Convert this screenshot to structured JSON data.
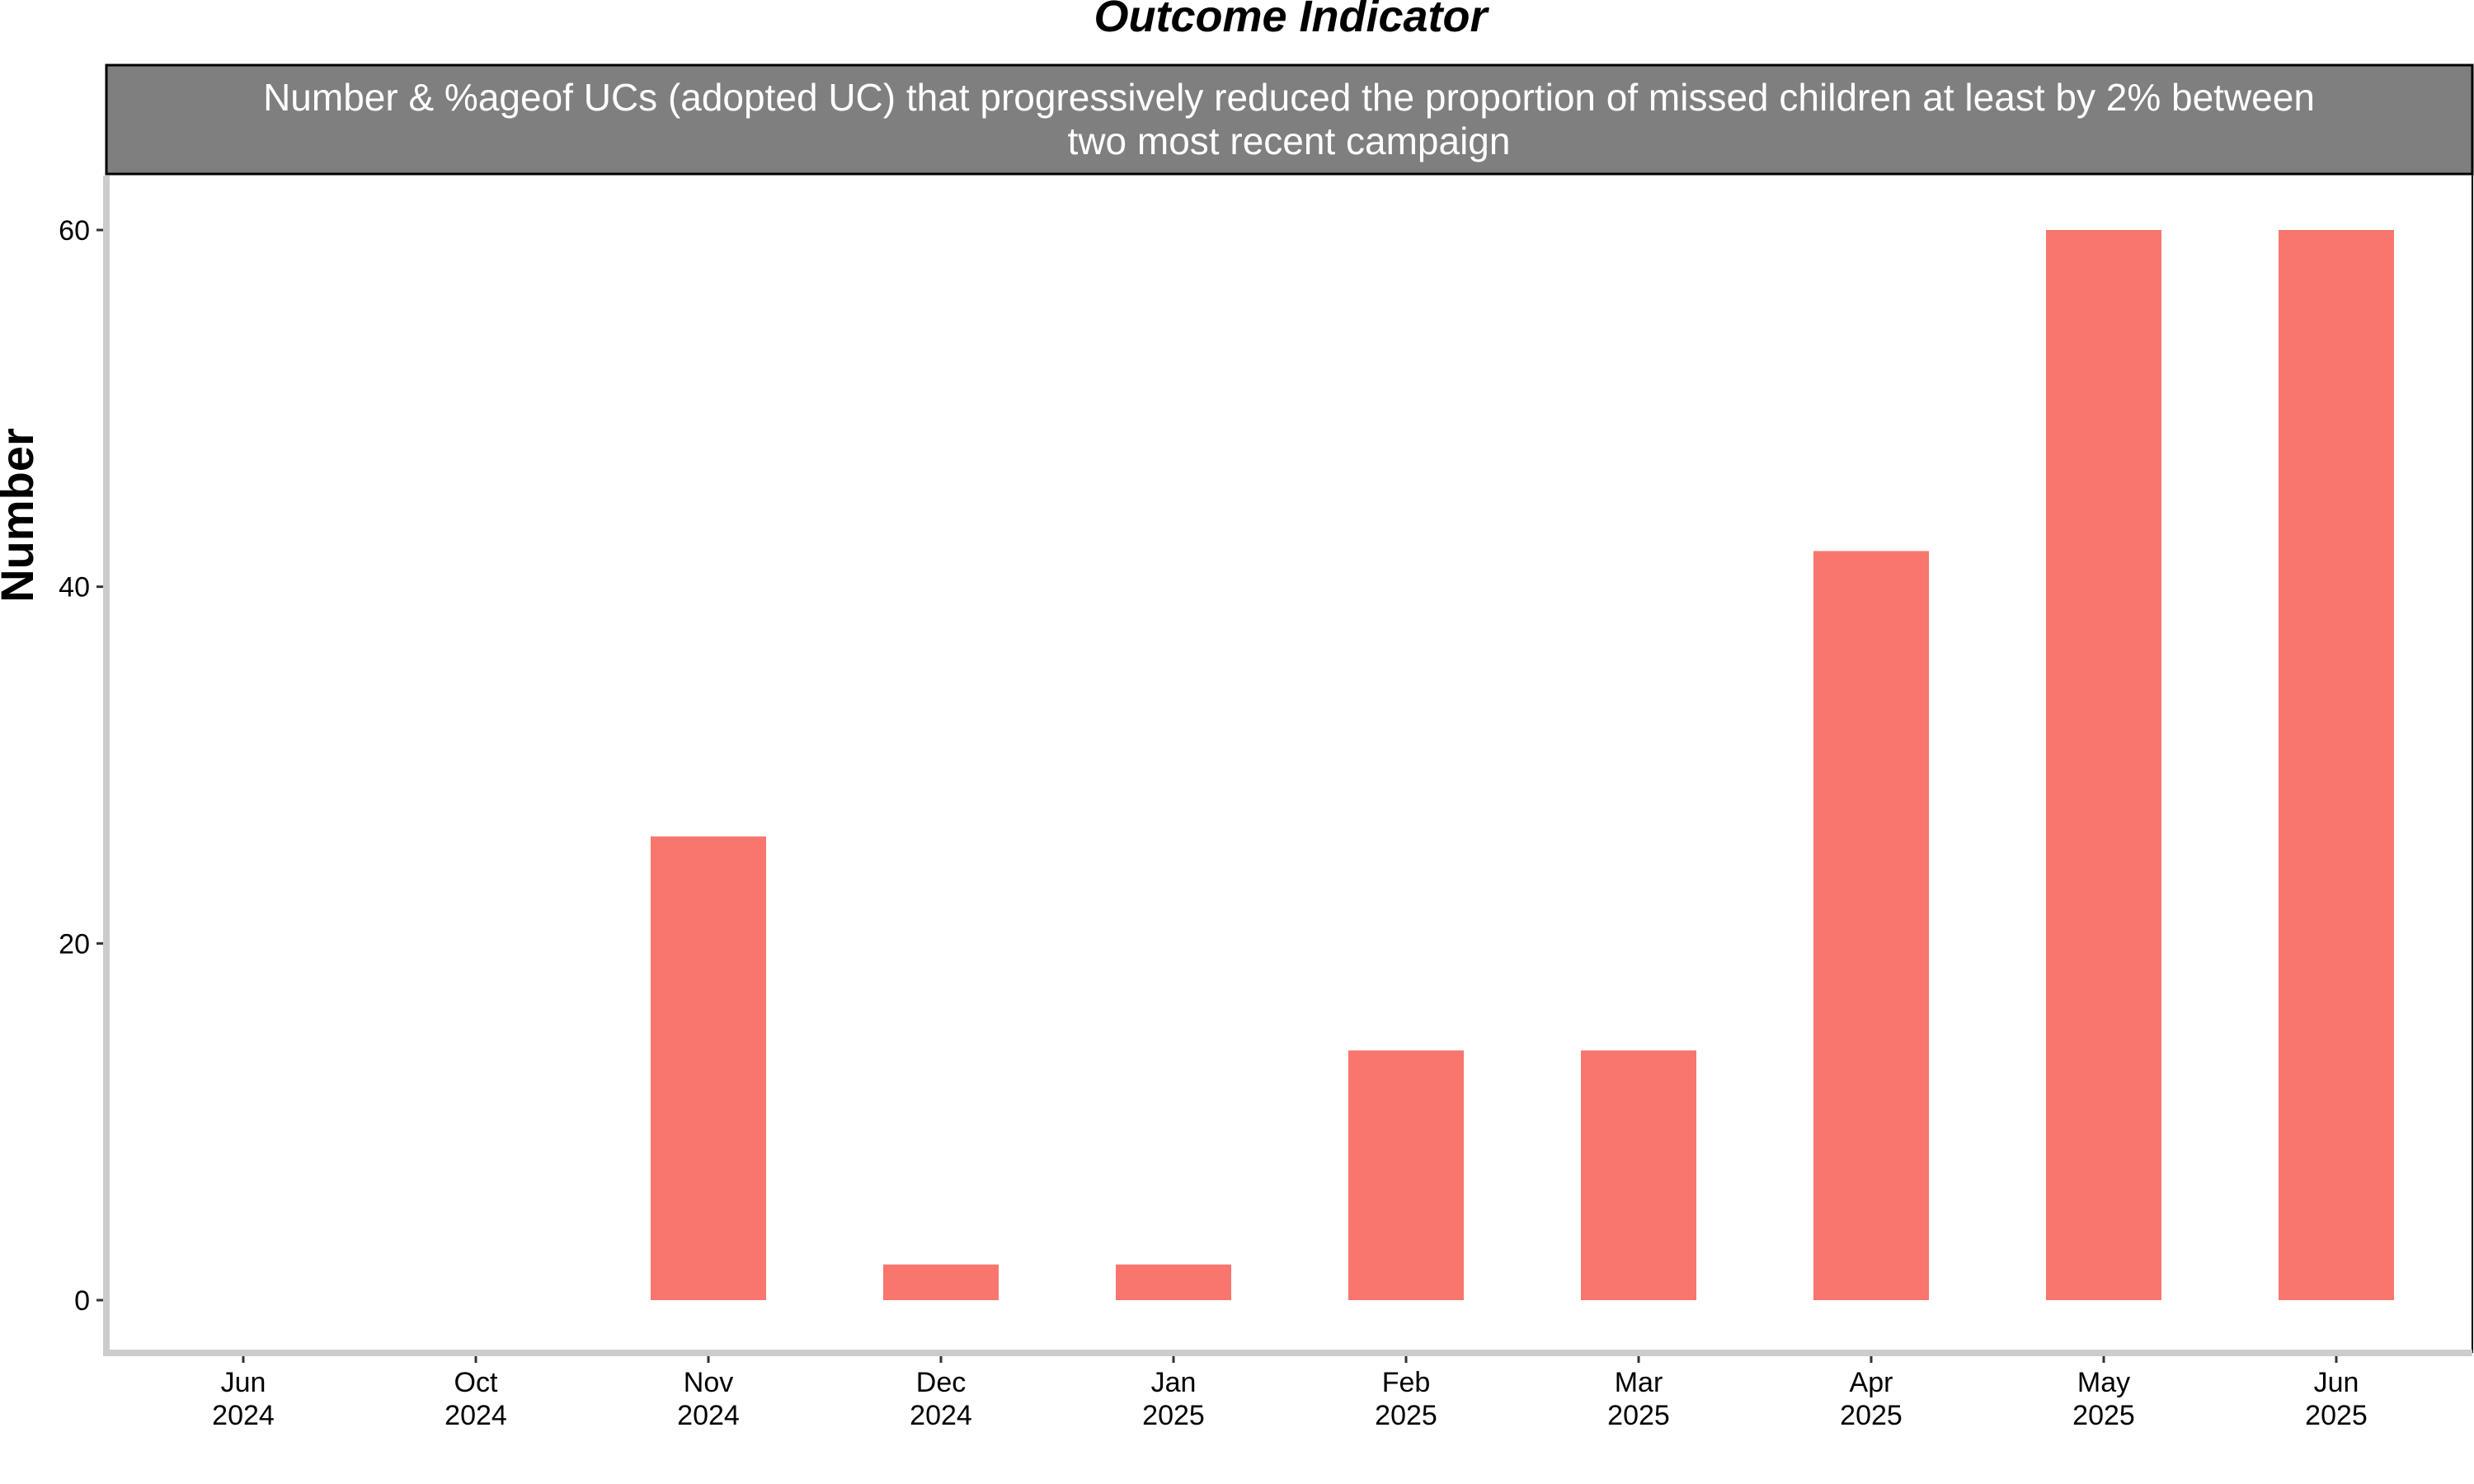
{
  "chart_data": {
    "type": "bar",
    "title": "Outcome Indicator",
    "subtitle_lines": [
      "Number & %ageof UCs (adopted UC) that progressively reduced the proportion of missed children at least by 2% between",
      "two most recent campaign"
    ],
    "xlabel": "",
    "ylabel": "Number",
    "categories": [
      [
        "Jun",
        "2024"
      ],
      [
        "Oct",
        "2024"
      ],
      [
        "Nov",
        "2024"
      ],
      [
        "Dec",
        "2024"
      ],
      [
        "Jan",
        "2025"
      ],
      [
        "Feb",
        "2025"
      ],
      [
        "Mar",
        "2025"
      ],
      [
        "Apr",
        "2025"
      ],
      [
        "May",
        "2025"
      ],
      [
        "Jun",
        "2025"
      ]
    ],
    "values": [
      0,
      0,
      26,
      2,
      2,
      14,
      14,
      42,
      60,
      60
    ],
    "ylim": [
      0,
      60
    ],
    "yticks": [
      0,
      20,
      40,
      60
    ],
    "bar_color": "#F8766D",
    "strip_fill": "#7F7F7F",
    "axis_color": "#CCCCCC",
    "grid": false,
    "legend": "none"
  }
}
